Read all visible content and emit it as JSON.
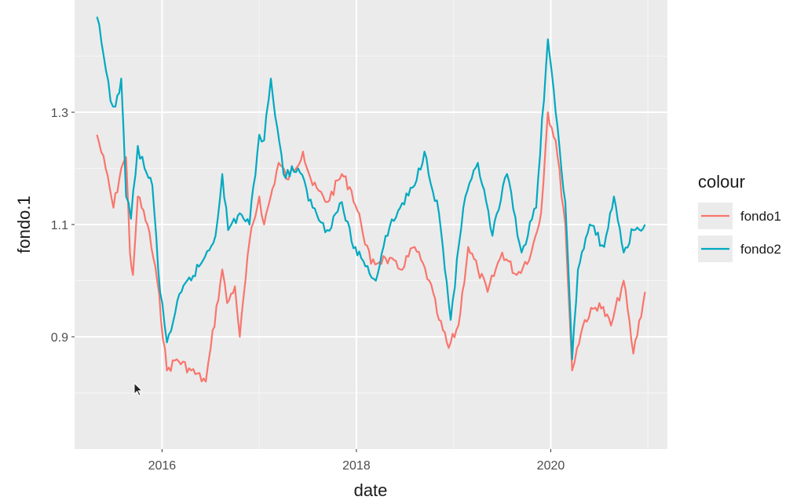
{
  "chart_data": {
    "type": "line",
    "title": "",
    "xlabel": "date",
    "ylabel": "fondo.1",
    "xlim": [
      2015.1,
      2021.2
    ],
    "ylim": [
      0.7,
      1.5
    ],
    "x_ticks": [
      2016,
      2018,
      2020
    ],
    "x_tick_labels": [
      "2016",
      "2018",
      "2020"
    ],
    "y_ticks": [
      0.9,
      1.1,
      1.3
    ],
    "y_tick_labels": [
      "0.9",
      "1.1",
      "1.3"
    ],
    "grid": true,
    "legend": {
      "title": "colour",
      "position": "right"
    },
    "series": [
      {
        "name": "fondo1",
        "color": "#F8766D",
        "x": [
          2015.33,
          2015.42,
          2015.5,
          2015.58,
          2015.63,
          2015.67,
          2015.7,
          2015.75,
          2015.85,
          2015.95,
          2016.05,
          2016.15,
          2016.3,
          2016.45,
          2016.5,
          2016.62,
          2016.67,
          2016.75,
          2016.8,
          2016.9,
          2017.0,
          2017.05,
          2017.2,
          2017.3,
          2017.45,
          2017.55,
          2017.7,
          2017.85,
          2017.95,
          2018.05,
          2018.15,
          2018.3,
          2018.45,
          2018.6,
          2018.75,
          2018.85,
          2018.95,
          2019.05,
          2019.15,
          2019.25,
          2019.35,
          2019.5,
          2019.65,
          2019.8,
          2019.9,
          2019.97,
          2020.05,
          2020.15,
          2020.22,
          2020.27,
          2020.35,
          2020.5,
          2020.62,
          2020.75,
          2020.85,
          2020.97
        ],
        "y": [
          1.26,
          1.2,
          1.13,
          1.2,
          1.22,
          1.05,
          1.01,
          1.15,
          1.1,
          1.0,
          0.84,
          0.86,
          0.84,
          0.82,
          0.88,
          1.02,
          0.96,
          0.99,
          0.9,
          1.07,
          1.15,
          1.1,
          1.21,
          1.18,
          1.23,
          1.17,
          1.14,
          1.19,
          1.16,
          1.1,
          1.03,
          1.04,
          1.02,
          1.06,
          1.0,
          0.93,
          0.88,
          0.92,
          1.06,
          1.02,
          0.98,
          1.05,
          1.01,
          1.05,
          1.12,
          1.3,
          1.25,
          1.1,
          0.84,
          0.88,
          0.93,
          0.96,
          0.92,
          1.0,
          0.87,
          0.98
        ]
      },
      {
        "name": "fondo2",
        "color": "#00A9C1",
        "x": [
          2015.33,
          2015.4,
          2015.47,
          2015.52,
          2015.58,
          2015.63,
          2015.68,
          2015.75,
          2015.82,
          2015.9,
          2015.98,
          2016.05,
          2016.2,
          2016.4,
          2016.55,
          2016.62,
          2016.68,
          2016.8,
          2016.9,
          2017.0,
          2017.05,
          2017.12,
          2017.25,
          2017.4,
          2017.55,
          2017.7,
          2017.85,
          2017.95,
          2018.05,
          2018.2,
          2018.3,
          2018.45,
          2018.6,
          2018.7,
          2018.85,
          2018.97,
          2019.1,
          2019.25,
          2019.4,
          2019.55,
          2019.7,
          2019.85,
          2019.97,
          2020.05,
          2020.15,
          2020.22,
          2020.28,
          2020.4,
          2020.55,
          2020.65,
          2020.75,
          2020.85,
          2020.97
        ],
        "y": [
          1.47,
          1.4,
          1.32,
          1.31,
          1.36,
          1.15,
          1.11,
          1.24,
          1.2,
          1.17,
          0.98,
          0.89,
          0.98,
          1.03,
          1.08,
          1.19,
          1.09,
          1.12,
          1.1,
          1.26,
          1.25,
          1.36,
          1.19,
          1.2,
          1.13,
          1.09,
          1.14,
          1.07,
          1.04,
          1.0,
          1.08,
          1.13,
          1.17,
          1.23,
          1.12,
          0.93,
          1.13,
          1.21,
          1.08,
          1.19,
          1.05,
          1.13,
          1.43,
          1.3,
          1.14,
          0.86,
          1.02,
          1.1,
          1.06,
          1.15,
          1.05,
          1.09,
          1.1
        ]
      }
    ]
  },
  "cursor": {
    "name": "mouse-pointer-icon"
  }
}
